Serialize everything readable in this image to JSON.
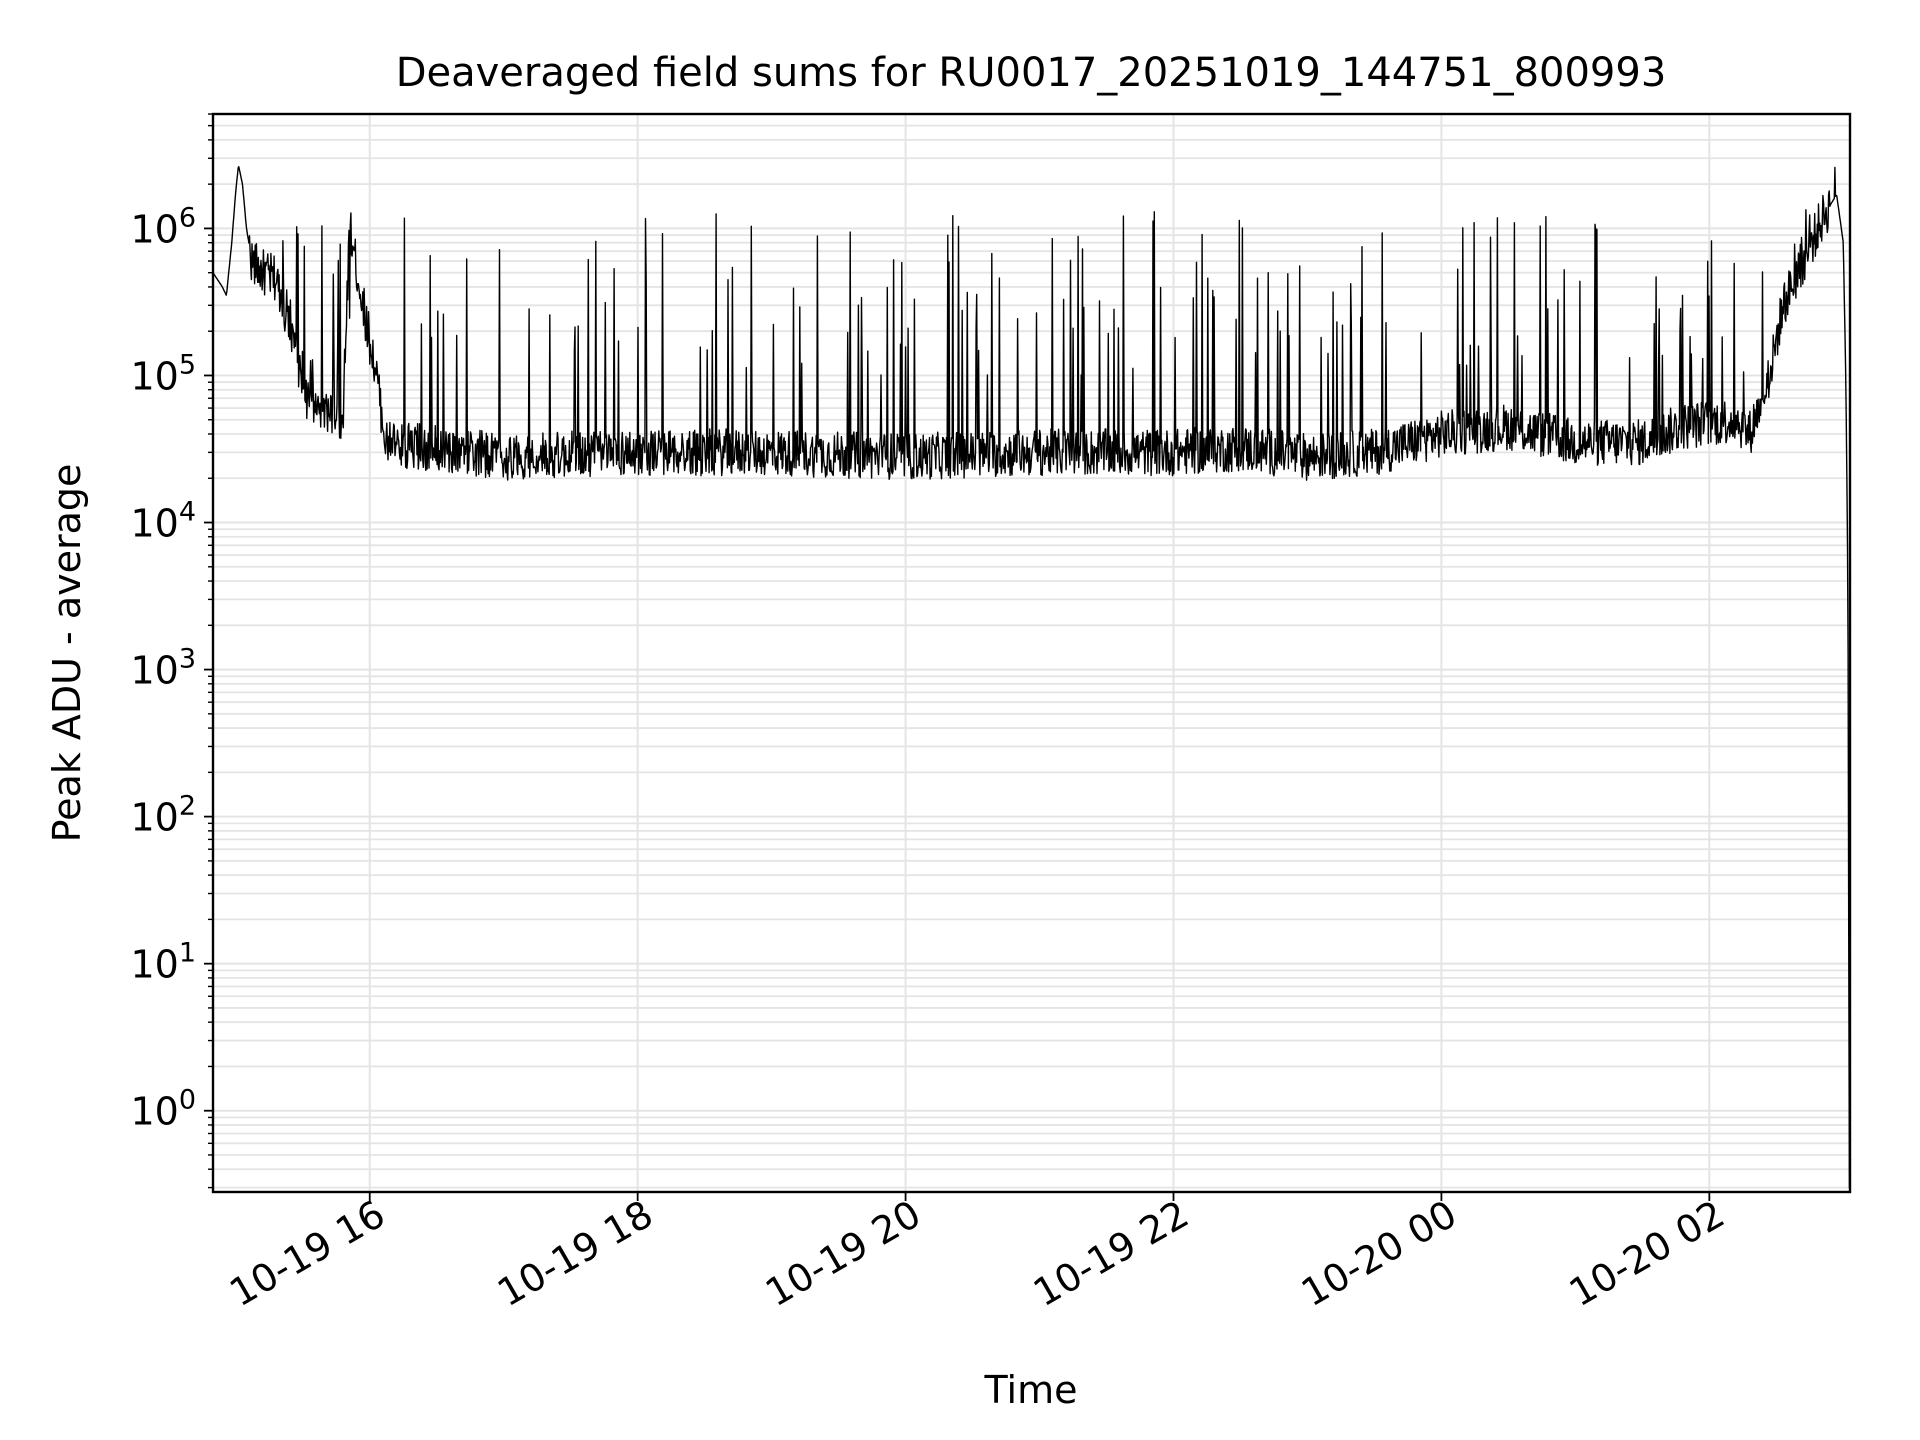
{
  "chart_data": {
    "type": "line",
    "title": "Deaveraged field sums for RU0017_20251019_144751_800993",
    "xlabel": "Time",
    "ylabel": "Peak ADU - average",
    "yscale": "log",
    "ylim": [
      0.28,
      6000000
    ],
    "xlim_hours_since_10_19_00": [
      14.83,
      27.05
    ],
    "grid": true,
    "line_color": "#000000",
    "grid_color": "#e4e4e4",
    "xticks": [
      {
        "hour": 16,
        "label": "10-19 16"
      },
      {
        "hour": 18,
        "label": "10-19 18"
      },
      {
        "hour": 20,
        "label": "10-19 20"
      },
      {
        "hour": 22,
        "label": "10-19 22"
      },
      {
        "hour": 24,
        "label": "10-20 00"
      },
      {
        "hour": 26,
        "label": "10-20 02"
      }
    ],
    "yticks": [
      {
        "exp": 0,
        "base": "10",
        "sup": "0"
      },
      {
        "exp": 1,
        "base": "10",
        "sup": "1"
      },
      {
        "exp": 2,
        "base": "10",
        "sup": "2"
      },
      {
        "exp": 3,
        "base": "10",
        "sup": "3"
      },
      {
        "exp": 4,
        "base": "10",
        "sup": "4"
      },
      {
        "exp": 5,
        "base": "10",
        "sup": "5"
      },
      {
        "exp": 6,
        "base": "10",
        "sup": "6"
      }
    ],
    "series": [
      {
        "name": "Peak ADU - average",
        "anchors": [
          [
            14.83,
            500000
          ],
          [
            14.9,
            400000
          ],
          [
            14.93,
            350000
          ],
          [
            14.97,
            800000
          ],
          [
            15.0,
            1800000
          ],
          [
            15.02,
            2700000
          ],
          [
            15.05,
            2000000
          ],
          [
            15.08,
            1000000
          ],
          [
            15.12,
            600000
          ],
          [
            15.2,
            500000
          ],
          [
            15.3,
            450000
          ],
          [
            15.4,
            250000
          ],
          [
            15.5,
            80000
          ],
          [
            15.6,
            60000
          ],
          [
            15.8,
            50000
          ],
          [
            15.85,
            1000000
          ],
          [
            15.95,
            300000
          ],
          [
            16.05,
            100000
          ],
          [
            16.12,
            35000
          ],
          [
            17.0,
            28000
          ],
          [
            18.0,
            30000
          ],
          [
            19.0,
            30000
          ],
          [
            20.0,
            28000
          ],
          [
            21.0,
            30000
          ],
          [
            22.0,
            30000
          ],
          [
            22.5,
            32000
          ],
          [
            23.0,
            28000
          ],
          [
            23.5,
            30000
          ],
          [
            24.0,
            40000
          ],
          [
            24.5,
            45000
          ],
          [
            25.0,
            35000
          ],
          [
            25.5,
            35000
          ],
          [
            25.8,
            45000
          ],
          [
            26.2,
            50000
          ],
          [
            26.3,
            40000
          ],
          [
            26.45,
            100000
          ],
          [
            26.55,
            300000
          ],
          [
            26.7,
            600000
          ],
          [
            26.85,
            1200000
          ],
          [
            26.95,
            1700000
          ],
          [
            27.0,
            800000
          ],
          [
            27.02,
            80000
          ],
          [
            27.035,
            3000
          ],
          [
            27.045,
            0.3
          ]
        ],
        "noise_band": {
          "t_start": 16.12,
          "t_end": 26.4,
          "low": 18000,
          "high": 60000
        },
        "spike_peak_range": [
          100000,
          1300000
        ]
      }
    ]
  }
}
